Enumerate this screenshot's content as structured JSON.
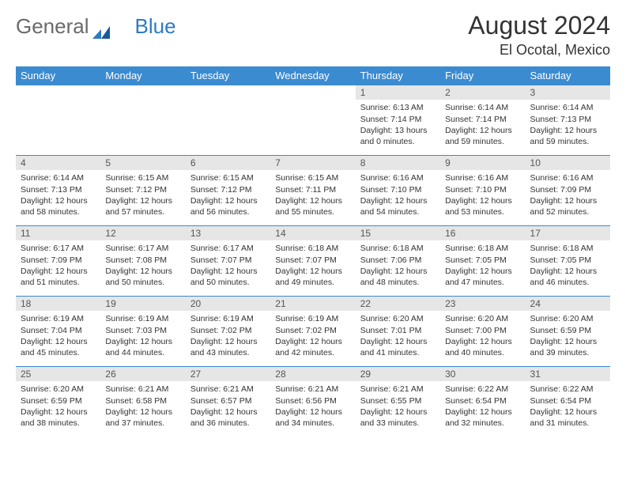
{
  "brand": {
    "word1": "General",
    "word2": "Blue"
  },
  "title": "August 2024",
  "location": "El Ocotal, Mexico",
  "colors": {
    "header_bg": "#3b8bd0",
    "header_text": "#ffffff",
    "daynum_bg": "#e6e6e6",
    "border": "#3b8bd0",
    "text": "#333333",
    "logo_gray": "#6a6a6a",
    "logo_blue": "#2d7bc4"
  },
  "day_headers": [
    "Sunday",
    "Monday",
    "Tuesday",
    "Wednesday",
    "Thursday",
    "Friday",
    "Saturday"
  ],
  "weeks": [
    [
      {
        "n": "",
        "sr": "",
        "ss": "",
        "dl": ""
      },
      {
        "n": "",
        "sr": "",
        "ss": "",
        "dl": ""
      },
      {
        "n": "",
        "sr": "",
        "ss": "",
        "dl": ""
      },
      {
        "n": "",
        "sr": "",
        "ss": "",
        "dl": ""
      },
      {
        "n": "1",
        "sr": "Sunrise: 6:13 AM",
        "ss": "Sunset: 7:14 PM",
        "dl": "Daylight: 13 hours and 0 minutes."
      },
      {
        "n": "2",
        "sr": "Sunrise: 6:14 AM",
        "ss": "Sunset: 7:14 PM",
        "dl": "Daylight: 12 hours and 59 minutes."
      },
      {
        "n": "3",
        "sr": "Sunrise: 6:14 AM",
        "ss": "Sunset: 7:13 PM",
        "dl": "Daylight: 12 hours and 59 minutes."
      }
    ],
    [
      {
        "n": "4",
        "sr": "Sunrise: 6:14 AM",
        "ss": "Sunset: 7:13 PM",
        "dl": "Daylight: 12 hours and 58 minutes."
      },
      {
        "n": "5",
        "sr": "Sunrise: 6:15 AM",
        "ss": "Sunset: 7:12 PM",
        "dl": "Daylight: 12 hours and 57 minutes."
      },
      {
        "n": "6",
        "sr": "Sunrise: 6:15 AM",
        "ss": "Sunset: 7:12 PM",
        "dl": "Daylight: 12 hours and 56 minutes."
      },
      {
        "n": "7",
        "sr": "Sunrise: 6:15 AM",
        "ss": "Sunset: 7:11 PM",
        "dl": "Daylight: 12 hours and 55 minutes."
      },
      {
        "n": "8",
        "sr": "Sunrise: 6:16 AM",
        "ss": "Sunset: 7:10 PM",
        "dl": "Daylight: 12 hours and 54 minutes."
      },
      {
        "n": "9",
        "sr": "Sunrise: 6:16 AM",
        "ss": "Sunset: 7:10 PM",
        "dl": "Daylight: 12 hours and 53 minutes."
      },
      {
        "n": "10",
        "sr": "Sunrise: 6:16 AM",
        "ss": "Sunset: 7:09 PM",
        "dl": "Daylight: 12 hours and 52 minutes."
      }
    ],
    [
      {
        "n": "11",
        "sr": "Sunrise: 6:17 AM",
        "ss": "Sunset: 7:09 PM",
        "dl": "Daylight: 12 hours and 51 minutes."
      },
      {
        "n": "12",
        "sr": "Sunrise: 6:17 AM",
        "ss": "Sunset: 7:08 PM",
        "dl": "Daylight: 12 hours and 50 minutes."
      },
      {
        "n": "13",
        "sr": "Sunrise: 6:17 AM",
        "ss": "Sunset: 7:07 PM",
        "dl": "Daylight: 12 hours and 50 minutes."
      },
      {
        "n": "14",
        "sr": "Sunrise: 6:18 AM",
        "ss": "Sunset: 7:07 PM",
        "dl": "Daylight: 12 hours and 49 minutes."
      },
      {
        "n": "15",
        "sr": "Sunrise: 6:18 AM",
        "ss": "Sunset: 7:06 PM",
        "dl": "Daylight: 12 hours and 48 minutes."
      },
      {
        "n": "16",
        "sr": "Sunrise: 6:18 AM",
        "ss": "Sunset: 7:05 PM",
        "dl": "Daylight: 12 hours and 47 minutes."
      },
      {
        "n": "17",
        "sr": "Sunrise: 6:18 AM",
        "ss": "Sunset: 7:05 PM",
        "dl": "Daylight: 12 hours and 46 minutes."
      }
    ],
    [
      {
        "n": "18",
        "sr": "Sunrise: 6:19 AM",
        "ss": "Sunset: 7:04 PM",
        "dl": "Daylight: 12 hours and 45 minutes."
      },
      {
        "n": "19",
        "sr": "Sunrise: 6:19 AM",
        "ss": "Sunset: 7:03 PM",
        "dl": "Daylight: 12 hours and 44 minutes."
      },
      {
        "n": "20",
        "sr": "Sunrise: 6:19 AM",
        "ss": "Sunset: 7:02 PM",
        "dl": "Daylight: 12 hours and 43 minutes."
      },
      {
        "n": "21",
        "sr": "Sunrise: 6:19 AM",
        "ss": "Sunset: 7:02 PM",
        "dl": "Daylight: 12 hours and 42 minutes."
      },
      {
        "n": "22",
        "sr": "Sunrise: 6:20 AM",
        "ss": "Sunset: 7:01 PM",
        "dl": "Daylight: 12 hours and 41 minutes."
      },
      {
        "n": "23",
        "sr": "Sunrise: 6:20 AM",
        "ss": "Sunset: 7:00 PM",
        "dl": "Daylight: 12 hours and 40 minutes."
      },
      {
        "n": "24",
        "sr": "Sunrise: 6:20 AM",
        "ss": "Sunset: 6:59 PM",
        "dl": "Daylight: 12 hours and 39 minutes."
      }
    ],
    [
      {
        "n": "25",
        "sr": "Sunrise: 6:20 AM",
        "ss": "Sunset: 6:59 PM",
        "dl": "Daylight: 12 hours and 38 minutes."
      },
      {
        "n": "26",
        "sr": "Sunrise: 6:21 AM",
        "ss": "Sunset: 6:58 PM",
        "dl": "Daylight: 12 hours and 37 minutes."
      },
      {
        "n": "27",
        "sr": "Sunrise: 6:21 AM",
        "ss": "Sunset: 6:57 PM",
        "dl": "Daylight: 12 hours and 36 minutes."
      },
      {
        "n": "28",
        "sr": "Sunrise: 6:21 AM",
        "ss": "Sunset: 6:56 PM",
        "dl": "Daylight: 12 hours and 34 minutes."
      },
      {
        "n": "29",
        "sr": "Sunrise: 6:21 AM",
        "ss": "Sunset: 6:55 PM",
        "dl": "Daylight: 12 hours and 33 minutes."
      },
      {
        "n": "30",
        "sr": "Sunrise: 6:22 AM",
        "ss": "Sunset: 6:54 PM",
        "dl": "Daylight: 12 hours and 32 minutes."
      },
      {
        "n": "31",
        "sr": "Sunrise: 6:22 AM",
        "ss": "Sunset: 6:54 PM",
        "dl": "Daylight: 12 hours and 31 minutes."
      }
    ]
  ]
}
